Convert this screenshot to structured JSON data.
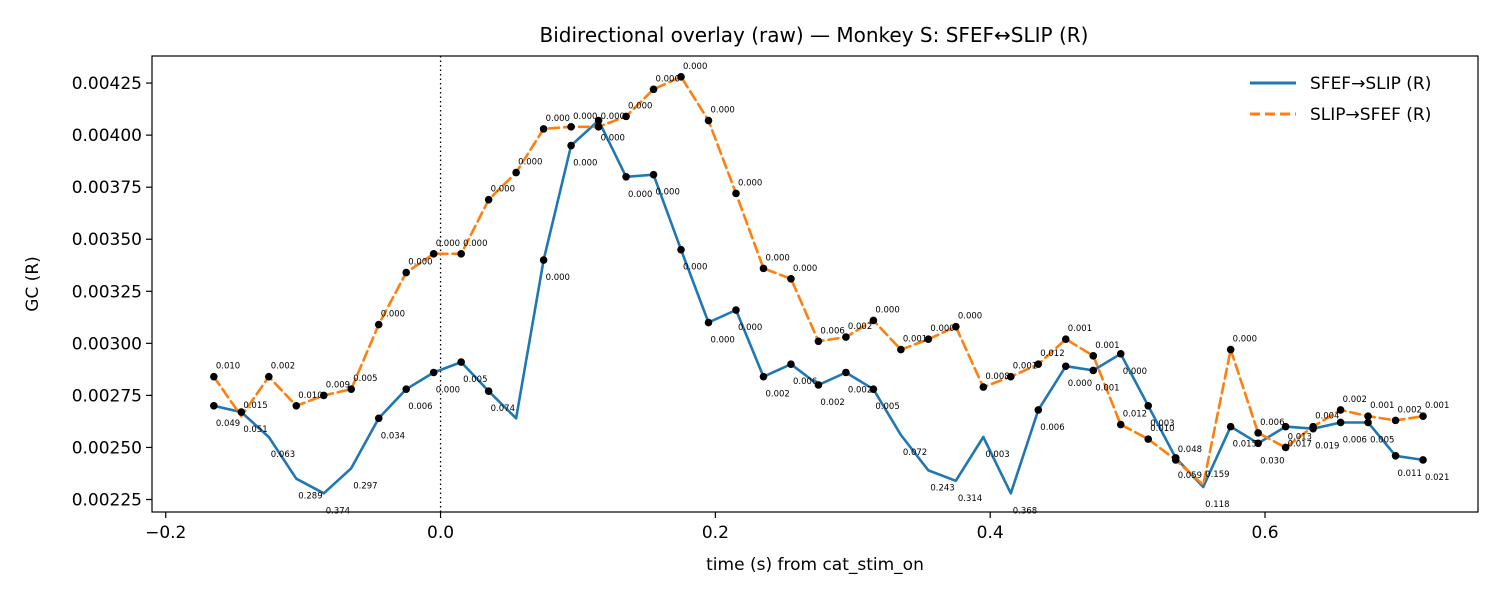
{
  "chart_data": {
    "type": "line",
    "title": "Bidirectional overlay (raw) — Monkey S: SFEF↔SLIP (R)",
    "xlabel": "time (s) from cat_stim_on",
    "ylabel": "GC (R)",
    "xlim": [
      -0.21,
      0.755
    ],
    "ylim": [
      0.00219,
      0.00438
    ],
    "xticks": [
      -0.2,
      0.0,
      0.2,
      0.4,
      0.6
    ],
    "xtick_labels": [
      "−0.2",
      "0.0",
      "0.2",
      "0.4",
      "0.6"
    ],
    "yticks": [
      0.00225,
      0.0025,
      0.00275,
      0.003,
      0.00325,
      0.0035,
      0.00375,
      0.004,
      0.00425
    ],
    "ytick_labels": [
      "0.00225",
      "0.00250",
      "0.00275",
      "0.00300",
      "0.00325",
      "0.00350",
      "0.00375",
      "0.00400",
      "0.00425"
    ],
    "vline_x": 0.0,
    "grid": false,
    "legend_position": "top-right",
    "x": [
      -0.165,
      -0.145,
      -0.125,
      -0.105,
      -0.085,
      -0.065,
      -0.045,
      -0.025,
      -0.005,
      0.015,
      0.035,
      0.055,
      0.075,
      0.095,
      0.115,
      0.135,
      0.155,
      0.175,
      0.195,
      0.215,
      0.235,
      0.255,
      0.275,
      0.295,
      0.315,
      0.335,
      0.355,
      0.375,
      0.395,
      0.415,
      0.435,
      0.455,
      0.475,
      0.495,
      0.515,
      0.535,
      0.555,
      0.575,
      0.595,
      0.615,
      0.635,
      0.655,
      0.675,
      0.695,
      0.715
    ],
    "series": [
      {
        "name": "SFEF→SLIP (R)",
        "color": "#1f77b4",
        "dash": "solid",
        "values": [
          0.0027,
          0.00267,
          0.00255,
          0.00235,
          0.00228,
          0.0024,
          0.00264,
          0.00278,
          0.00286,
          0.00291,
          0.00277,
          0.00264,
          0.0034,
          0.00395,
          0.00407,
          0.0038,
          0.00381,
          0.00345,
          0.0031,
          0.00316,
          0.00284,
          0.0029,
          0.0028,
          0.00286,
          0.00278,
          0.00256,
          0.00239,
          0.00234,
          0.00255,
          0.00228,
          0.00268,
          0.00289,
          0.00287,
          0.00295,
          0.0027,
          0.00245,
          0.00231,
          0.0026,
          0.00252,
          0.0026,
          0.00259,
          0.00262,
          0.00262,
          0.00246,
          0.00244
        ],
        "markers": [
          0,
          1,
          6,
          7,
          8,
          9,
          10,
          12,
          13,
          14,
          15,
          16,
          17,
          18,
          19,
          20,
          21,
          22,
          23,
          24,
          30,
          31,
          32,
          33,
          34,
          35,
          37,
          38,
          39,
          40,
          41,
          42,
          43,
          44
        ],
        "pvals": [
          "0.049",
          "0.051",
          "0.063",
          "0.289",
          "0.374",
          "0.297",
          "0.034",
          "0.006",
          "0.000",
          "0.005",
          "0.074",
          "",
          "0.000",
          "0.000",
          "0.000",
          "0.000",
          "0.000",
          "0.000",
          "0.000",
          "0.000",
          "0.002",
          "0.006",
          "0.002",
          "0.002",
          "0.005",
          "0.072",
          "0.243",
          "0.314",
          "0.003",
          "0.368",
          "0.006",
          "0.000",
          "0.001",
          "0.000",
          "0.003",
          "0.059",
          "0.118",
          "0.015",
          "0.030",
          "0.017",
          "0.019",
          "0.006",
          "0.005",
          "0.011",
          "0.021"
        ]
      },
      {
        "name": "SLIP→SFEF (R)",
        "color": "#ff7f0e",
        "dash": "dashed",
        "values": [
          0.00284,
          0.00265,
          0.00284,
          0.0027,
          0.00275,
          0.00278,
          0.00309,
          0.00334,
          0.00343,
          0.00343,
          0.00369,
          0.00382,
          0.00403,
          0.00404,
          0.00404,
          0.00409,
          0.00422,
          0.00428,
          0.00407,
          0.00372,
          0.00336,
          0.00331,
          0.00301,
          0.00303,
          0.00311,
          0.00297,
          0.00302,
          0.00308,
          0.00279,
          0.00284,
          0.0029,
          0.00302,
          0.00294,
          0.00261,
          0.00254,
          0.00244,
          0.00232,
          0.00297,
          0.00257,
          0.0025,
          0.0026,
          0.00268,
          0.00265,
          0.00263,
          0.00265
        ],
        "markers": [
          0,
          2,
          3,
          4,
          5,
          6,
          7,
          8,
          9,
          10,
          11,
          12,
          13,
          14,
          15,
          16,
          17,
          18,
          19,
          20,
          21,
          22,
          23,
          24,
          25,
          26,
          27,
          28,
          29,
          30,
          31,
          32,
          33,
          34,
          35,
          37,
          38,
          39,
          40,
          41,
          42,
          43,
          44
        ],
        "pvals": [
          "0.010",
          "0.015",
          "0.002",
          "0.010",
          "0.009",
          "0.005",
          "0.000",
          "0.000",
          "0.000",
          "0.000",
          "0.000",
          "0.000",
          "0.000",
          "0.000",
          "0.000",
          "0.000",
          "0.000",
          "0.000",
          "0.000",
          "0.000",
          "0.000",
          "0.000",
          "0.006",
          "0.002",
          "0.000",
          "0.001",
          "0.000",
          "0.000",
          "0.008",
          "0.001",
          "0.012",
          "0.001",
          "0.001",
          "0.012",
          "0.010",
          "0.048",
          "0.159",
          "0.000",
          "0.006",
          "0.013",
          "0.004",
          "0.002",
          "0.001",
          "0.002",
          "0.001"
        ]
      }
    ]
  }
}
